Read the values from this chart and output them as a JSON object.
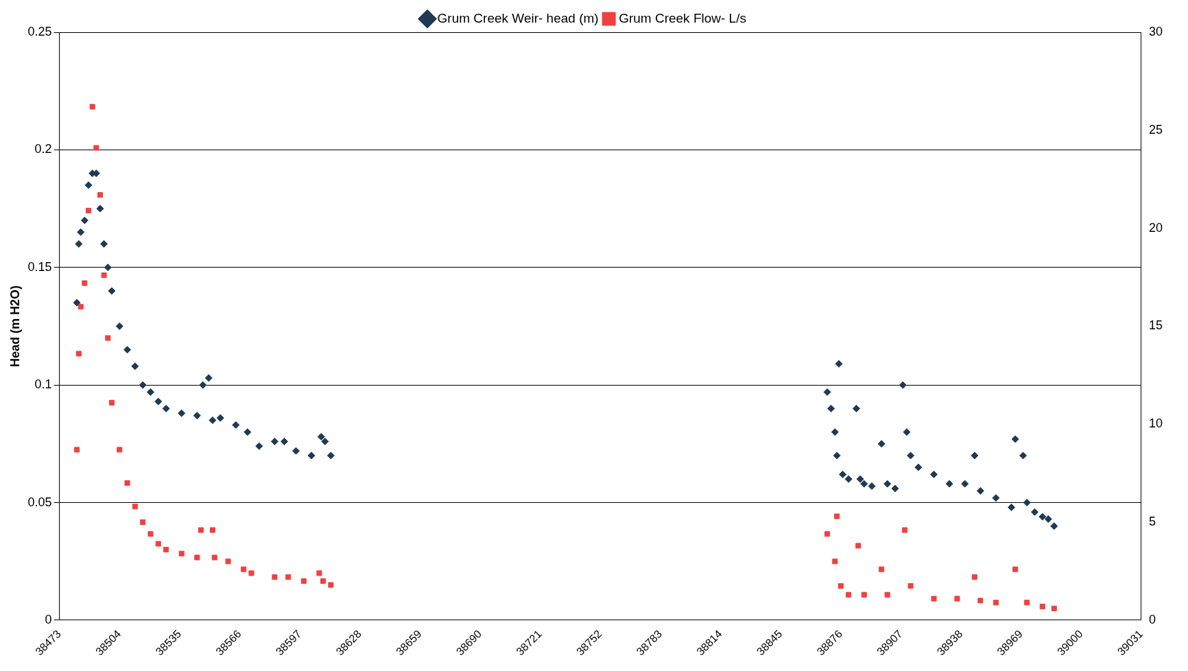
{
  "chart_data": {
    "type": "scatter",
    "ylabel": "Head (m H2O)",
    "legend": "top",
    "grid": "y",
    "xlim": [
      38473,
      39031
    ],
    "xticks": [
      38473,
      38504,
      38535,
      38566,
      38597,
      38628,
      38659,
      38690,
      38721,
      38752,
      38783,
      38814,
      38845,
      38876,
      38907,
      38938,
      38969,
      39000,
      39031
    ],
    "ylim": [
      0,
      0.25
    ],
    "yticks": [
      0,
      0.05,
      0.1,
      0.15,
      0.2,
      0.25
    ],
    "y2lim": [
      0,
      30
    ],
    "y2ticks": [
      0,
      5,
      10,
      15,
      20,
      25,
      30
    ],
    "series": [
      {
        "name": "Grum Creek Weir- head (m)",
        "color": "#1f3a52",
        "marker": "diamond",
        "x": [
          38482,
          38483,
          38484,
          38486,
          38488,
          38490,
          38492,
          38494,
          38496,
          38498,
          38500,
          38504,
          38508,
          38512,
          38516,
          38520,
          38524,
          38528,
          38536,
          38544,
          38547,
          38550,
          38552,
          38556,
          38564,
          38570,
          38576,
          38584,
          38589,
          38595,
          38603,
          38608,
          38610,
          38613,
          38869,
          38871,
          38873,
          38874,
          38875,
          38877,
          38880,
          38884,
          38886,
          38888,
          38892,
          38897,
          38900,
          38904,
          38908,
          38910,
          38912,
          38916,
          38924,
          38932,
          38940,
          38945,
          38948,
          38956,
          38964,
          38966,
          38970,
          38972,
          38976,
          38980,
          38983,
          38986
        ],
        "values": [
          0.135,
          0.16,
          0.165,
          0.17,
          0.185,
          0.19,
          0.19,
          0.175,
          0.16,
          0.15,
          0.14,
          0.125,
          0.115,
          0.108,
          0.1,
          0.097,
          0.093,
          0.09,
          0.088,
          0.087,
          0.1,
          0.103,
          0.085,
          0.086,
          0.083,
          0.08,
          0.074,
          0.076,
          0.076,
          0.072,
          0.07,
          0.078,
          0.076,
          0.07,
          0.097,
          0.09,
          0.08,
          0.07,
          0.109,
          0.062,
          0.06,
          0.09,
          0.06,
          0.058,
          0.057,
          0.075,
          0.058,
          0.056,
          0.1,
          0.08,
          0.07,
          0.065,
          0.062,
          0.058,
          0.058,
          0.07,
          0.055,
          0.052,
          0.048,
          0.077,
          0.07,
          0.05,
          0.046,
          0.044,
          0.043,
          0.04
        ]
      },
      {
        "name": "Grum Creek Flow- L/s",
        "color": "#f04040",
        "marker": "square",
        "axis": "y2",
        "x": [
          38482,
          38483,
          38484,
          38486,
          38488,
          38490,
          38492,
          38494,
          38496,
          38498,
          38500,
          38504,
          38508,
          38512,
          38516,
          38520,
          38524,
          38528,
          38536,
          38544,
          38546,
          38552,
          38553,
          38560,
          38568,
          38572,
          38584,
          38591,
          38599,
          38607,
          38609,
          38613,
          38869,
          38873,
          38874,
          38876,
          38880,
          38885,
          38888,
          38897,
          38900,
          38909,
          38912,
          38924,
          38936,
          38945,
          38948,
          38956,
          38966,
          38972,
          38980,
          38986
        ],
        "values": [
          8.7,
          13.6,
          16,
          17.2,
          20.9,
          26.2,
          24.1,
          21.7,
          17.6,
          14.4,
          11.1,
          8.7,
          7,
          5.8,
          5,
          4.4,
          3.9,
          3.6,
          3.4,
          3.2,
          4.6,
          4.6,
          3.2,
          3,
          2.6,
          2.4,
          2.2,
          2.2,
          2,
          2.4,
          2,
          1.8,
          4.4,
          3,
          5.3,
          1.75,
          1.3,
          3.8,
          1.3,
          2.6,
          1.3,
          4.6,
          1.75,
          1.1,
          1.1,
          2.2,
          1,
          0.9,
          2.6,
          0.9,
          0.7,
          0.6
        ]
      }
    ]
  }
}
